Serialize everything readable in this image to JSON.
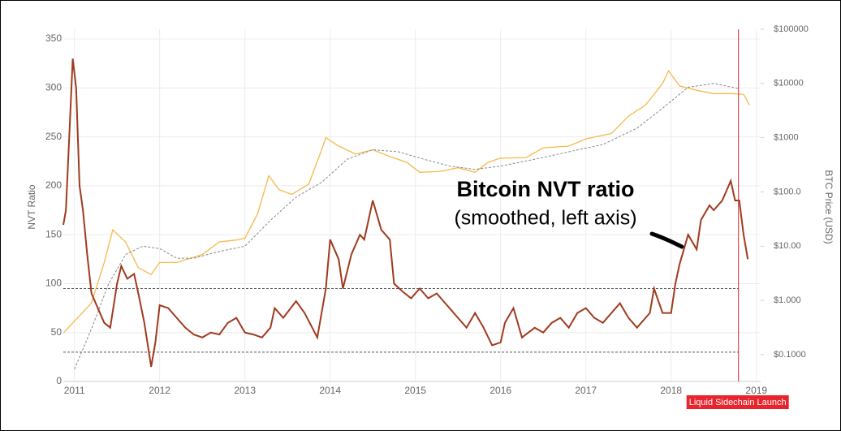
{
  "chart_data": {
    "type": "line",
    "annotation": [
      "Bitcoin NVT ratio",
      "(smoothed, left axis)"
    ],
    "ylabel": "NVT Ratio",
    "y2label": "BTC Price (USD)",
    "xlim": [
      2010.87,
      2019.05
    ],
    "xticks": [
      2011,
      2012,
      2013,
      2014,
      2015,
      2016,
      2017,
      2018,
      2019
    ],
    "ylim": [
      0,
      360
    ],
    "yticks": [
      0,
      50,
      100,
      150,
      200,
      250,
      300,
      350
    ],
    "y2lim": [
      0.032,
      100000
    ],
    "y2log": true,
    "y2ticks": [
      {
        "value": 0.1,
        "label": "$0.1000"
      },
      {
        "value": 1,
        "label": "$1.000"
      },
      {
        "value": 10,
        "label": "$10.00"
      },
      {
        "value": 100,
        "label": "$100.0"
      },
      {
        "value": 1000,
        "label": "$1000"
      },
      {
        "value": 10000,
        "label": "$10000"
      },
      {
        "value": 100000,
        "label": "$100000"
      }
    ],
    "grid": true,
    "reference_lines": [
      95,
      30
    ],
    "event": {
      "x": 2018.79,
      "label": "Liquid Sidechain Launch",
      "color": "#e8242c"
    },
    "series": [
      {
        "color": "#f5b94a",
        "axis": "y2",
        "dash": false,
        "x": [
          2010.87,
          2011.05,
          2011.2,
          2011.35,
          2011.45,
          2011.6,
          2011.75,
          2011.9,
          2012.0,
          2012.2,
          2012.5,
          2012.7,
          2012.9,
          2013.0,
          2013.15,
          2013.28,
          2013.4,
          2013.55,
          2013.75,
          2013.9,
          2013.95,
          2014.1,
          2014.3,
          2014.5,
          2014.7,
          2014.9,
          2015.05,
          2015.3,
          2015.5,
          2015.7,
          2015.85,
          2016.0,
          2016.3,
          2016.5,
          2016.8,
          2017.0,
          2017.3,
          2017.5,
          2017.7,
          2017.9,
          2017.97,
          2018.1,
          2018.3,
          2018.5,
          2018.7,
          2018.85,
          2018.92
        ],
        "values": [
          0.25,
          0.5,
          0.9,
          5,
          20,
          12,
          4,
          3,
          5,
          5,
          7,
          12,
          13,
          14,
          40,
          200,
          110,
          90,
          140,
          600,
          1000,
          700,
          500,
          600,
          450,
          350,
          230,
          240,
          280,
          230,
          350,
          420,
          430,
          650,
          700,
          950,
          1200,
          2500,
          4000,
          10000,
          17000,
          9000,
          7500,
          6500,
          6500,
          6300,
          4000
        ]
      },
      {
        "color": "#888888",
        "axis": "y2",
        "dash": true,
        "x": [
          2011.0,
          2011.2,
          2011.4,
          2011.6,
          2011.8,
          2012.0,
          2012.2,
          2012.4,
          2012.7,
          2013.0,
          2013.3,
          2013.6,
          2013.9,
          2014.2,
          2014.5,
          2014.8,
          2015.1,
          2015.4,
          2015.7,
          2016.0,
          2016.4,
          2016.8,
          2017.2,
          2017.6,
          2017.9,
          2018.2,
          2018.5,
          2018.8
        ],
        "values": [
          0.054,
          0.3,
          2,
          7,
          10,
          9,
          6,
          6,
          8,
          10,
          30,
          80,
          150,
          400,
          600,
          550,
          400,
          300,
          260,
          300,
          400,
          550,
          750,
          1500,
          3500,
          8500,
          10000,
          8000
        ]
      },
      {
        "color": "#a03a1e",
        "axis": "y",
        "dash": false,
        "x": [
          2010.87,
          2010.9,
          2010.95,
          2010.98,
          2011.02,
          2011.06,
          2011.1,
          2011.15,
          2011.2,
          2011.25,
          2011.35,
          2011.42,
          2011.5,
          2011.55,
          2011.62,
          2011.7,
          2011.75,
          2011.82,
          2011.9,
          2011.95,
          2012.0,
          2012.1,
          2012.2,
          2012.3,
          2012.4,
          2012.5,
          2012.6,
          2012.7,
          2012.8,
          2012.9,
          2013.0,
          2013.1,
          2013.2,
          2013.3,
          2013.35,
          2013.45,
          2013.6,
          2013.7,
          2013.85,
          2013.95,
          2014.0,
          2014.1,
          2014.15,
          2014.25,
          2014.35,
          2014.4,
          2014.5,
          2014.6,
          2014.7,
          2014.75,
          2014.85,
          2014.95,
          2015.05,
          2015.15,
          2015.25,
          2015.35,
          2015.5,
          2015.6,
          2015.7,
          2015.8,
          2015.9,
          2016.0,
          2016.05,
          2016.15,
          2016.25,
          2016.4,
          2016.5,
          2016.6,
          2016.7,
          2016.8,
          2016.9,
          2017.0,
          2017.1,
          2017.2,
          2017.3,
          2017.4,
          2017.5,
          2017.6,
          2017.75,
          2017.8,
          2017.9,
          2018.0,
          2018.05,
          2018.1,
          2018.2,
          2018.3,
          2018.35,
          2018.45,
          2018.5,
          2018.6,
          2018.7,
          2018.75,
          2018.8,
          2018.85,
          2018.9
        ],
        "values": [
          160,
          175,
          270,
          330,
          300,
          200,
          175,
          130,
          90,
          80,
          60,
          55,
          100,
          118,
          105,
          110,
          90,
          60,
          15,
          40,
          78,
          75,
          65,
          55,
          48,
          45,
          50,
          48,
          60,
          65,
          50,
          48,
          45,
          55,
          75,
          65,
          82,
          70,
          45,
          95,
          145,
          125,
          95,
          130,
          150,
          145,
          185,
          155,
          145,
          100,
          92,
          85,
          95,
          85,
          90,
          80,
          65,
          55,
          70,
          55,
          37,
          40,
          60,
          75,
          45,
          55,
          50,
          60,
          65,
          55,
          70,
          75,
          65,
          60,
          70,
          80,
          65,
          55,
          70,
          95,
          70,
          70,
          100,
          120,
          150,
          135,
          165,
          180,
          175,
          185,
          205,
          185,
          185,
          150,
          125
        ]
      }
    ]
  }
}
